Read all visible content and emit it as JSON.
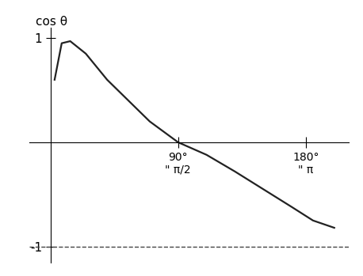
{
  "chart_data": {
    "type": "line",
    "y_label": "cos θ",
    "x": [
      3,
      8,
      14,
      25,
      40,
      55,
      70,
      90,
      110,
      130,
      150,
      170,
      185,
      200
    ],
    "values": [
      0.6,
      0.95,
      0.97,
      0.85,
      0.6,
      0.4,
      0.2,
      0.0,
      -0.12,
      -0.28,
      -0.45,
      -0.62,
      -0.75,
      -0.82
    ],
    "color": "#222222",
    "xlim": [
      -15,
      210
    ],
    "ylim": [
      -1.15,
      1.1
    ],
    "xticks": [
      {
        "value": 90,
        "label": "90°\n\" π/2"
      },
      {
        "value": 180,
        "label": "180°\n\" π"
      }
    ],
    "yticks": [
      -1,
      1
    ]
  }
}
